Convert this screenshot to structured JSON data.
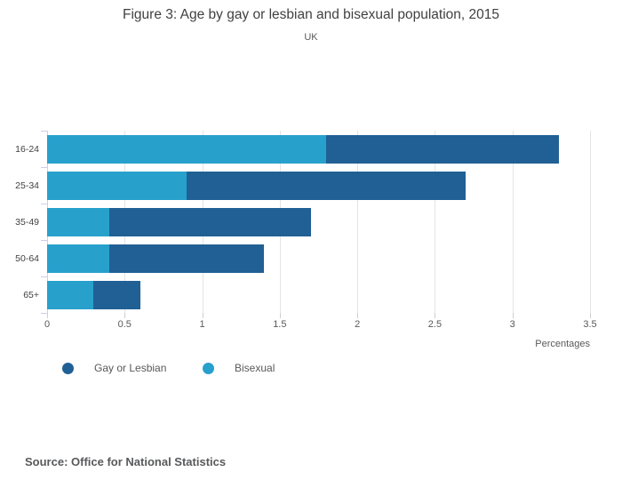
{
  "header": {
    "title": "Figure 3: Age by gay or lesbian and bisexual population, 2015",
    "subtitle": "UK"
  },
  "chart_data": {
    "type": "bar",
    "orientation": "horizontal",
    "stacked": true,
    "title": "Figure 3: Age by gay or lesbian and bisexual population, 2015",
    "subtitle": "UK",
    "categories": [
      "16-24",
      "25-34",
      "35-49",
      "50-64",
      "65+"
    ],
    "series": [
      {
        "name": "Bisexual",
        "color": "#27a0cc",
        "values": [
          1.8,
          0.9,
          0.4,
          0.4,
          0.3
        ]
      },
      {
        "name": "Gay or Lesbian",
        "color": "#206095",
        "values": [
          1.5,
          1.8,
          1.3,
          1.0,
          0.3
        ]
      }
    ],
    "totals": [
      3.3,
      2.7,
      1.7,
      1.4,
      0.6
    ],
    "xlabel": "Percentages",
    "ylabel": "",
    "xlim": [
      0,
      3.5
    ],
    "x_ticks": [
      "0",
      "0.5",
      "1",
      "1.5",
      "2",
      "2.5",
      "3",
      "3.5"
    ],
    "grid": true,
    "legend_position": "bottom-left",
    "legend": [
      {
        "label": "Gay or Lesbian",
        "color": "#206095"
      },
      {
        "label": "Bisexual",
        "color": "#27a0cc"
      }
    ]
  },
  "footer": {
    "source": "Source: Office for National Statistics"
  },
  "colors": {
    "gay_or_lesbian": "#206095",
    "bisexual": "#27a0cc",
    "gridline": "#e4e4e4",
    "axis_line": "#c9d2e4",
    "title_text": "#414042",
    "muted_text": "#58595b"
  }
}
